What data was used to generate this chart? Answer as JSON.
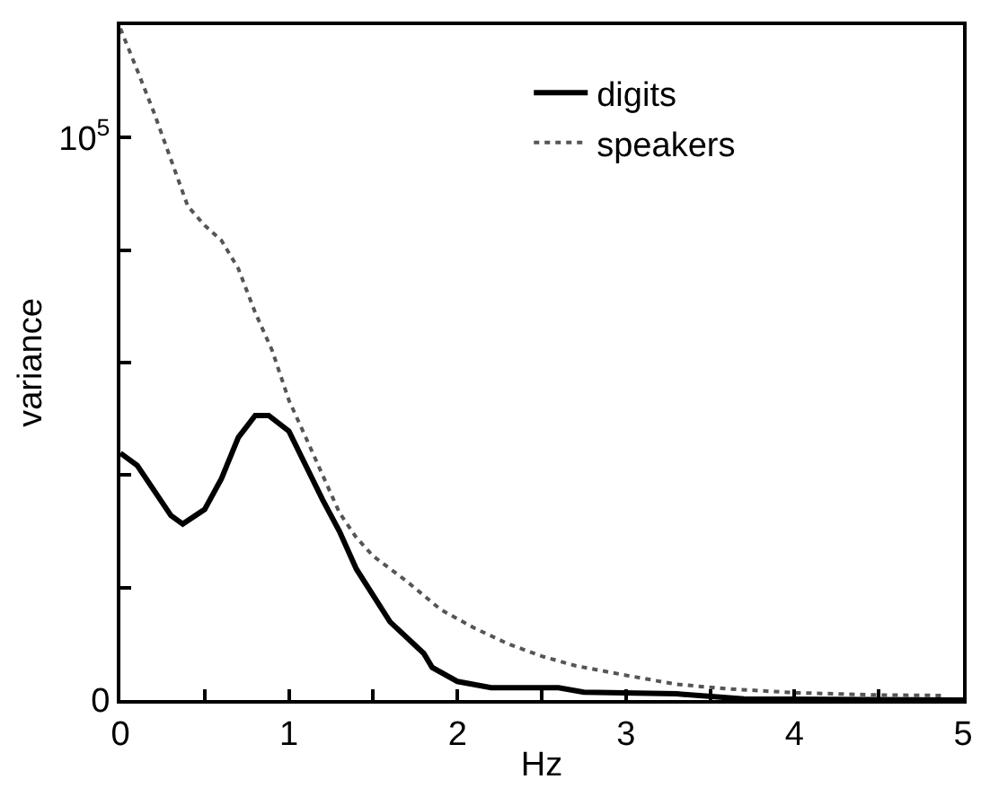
{
  "chart_data": {
    "type": "line",
    "xlabel": "Hz",
    "ylabel": "variance",
    "xlim": [
      0,
      5
    ],
    "xticks": [
      0,
      {
        "value": 0.5,
        "label": null
      },
      1,
      {
        "value": 1.5,
        "label": null
      },
      2,
      {
        "value": 2.5,
        "label": null
      },
      3,
      {
        "value": 3.5,
        "label": null
      },
      4,
      {
        "value": 4.5,
        "label": null
      },
      5
    ],
    "ylim": [
      0,
      120000
    ],
    "yticks": [
      {
        "value": 0,
        "label": "0"
      },
      {
        "value": 20000,
        "label": null
      },
      {
        "value": 40000,
        "label": null
      },
      {
        "value": 60000,
        "label": null
      },
      {
        "value": 80000,
        "label": null
      },
      {
        "value": 100000,
        "label": "10$^{5}$"
      }
    ],
    "grid": false,
    "legend": "top right",
    "marker": "none",
    "series": [
      {
        "name": "digits",
        "color": "#000000",
        "line_style": "solid",
        "x": [
          0,
          0.1,
          0.3,
          0.37,
          0.5,
          0.6,
          0.7,
          0.8,
          0.88,
          1.0,
          1.2,
          1.3,
          1.4,
          1.6,
          1.8,
          1.85,
          2.0,
          2.2,
          2.6,
          2.75,
          3.3,
          3.7,
          5
        ],
        "values": [
          43900,
          41700,
          32800,
          31300,
          33900,
          39400,
          46700,
          50600,
          50600,
          47800,
          35600,
          30000,
          23300,
          13900,
          8300,
          5800,
          3300,
          2200,
          2200,
          1400,
          1100,
          200,
          0
        ]
      },
      {
        "name": "speakers",
        "color": "#555555",
        "line_style": "dotted",
        "x": [
          0,
          0.1,
          0.2,
          0.3,
          0.4,
          0.5,
          0.6,
          0.7,
          0.8,
          0.9,
          1.0,
          1.1,
          1.2,
          1.3,
          1.4,
          1.5,
          1.7,
          1.9,
          2.1,
          2.3,
          2.5,
          2.7,
          3.0,
          3.3,
          3.6,
          4.0,
          4.5,
          4.9
        ],
        "values": [
          119400,
          112000,
          104400,
          96100,
          87800,
          84400,
          81700,
          76700,
          68900,
          62200,
          53300,
          46700,
          40000,
          33300,
          28900,
          25600,
          21100,
          16100,
          12800,
          10000,
          7800,
          6100,
          4400,
          2800,
          2000,
          1300,
          900,
          800
        ]
      }
    ]
  }
}
